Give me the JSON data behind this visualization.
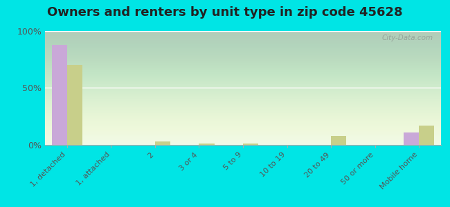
{
  "title": "Owners and renters by unit type in zip code 45628",
  "categories": [
    "1, detached",
    "1, attached",
    "2",
    "3 or 4",
    "5 to 9",
    "10 to 19",
    "20 to 49",
    "50 or more",
    "Mobile home"
  ],
  "owner_values": [
    88,
    0,
    0,
    0,
    0,
    0,
    0,
    0,
    11
  ],
  "renter_values": [
    70,
    0,
    3,
    1,
    1,
    0,
    8,
    0,
    17
  ],
  "owner_color": "#c9a8d8",
  "renter_color": "#c8cf8a",
  "background_color": "#00e5e5",
  "ylim": [
    0,
    100
  ],
  "yticks": [
    0,
    50,
    100
  ],
  "ytick_labels": [
    "0%",
    "50%",
    "100%"
  ],
  "watermark": "City-Data.com",
  "title_fontsize": 13,
  "tick_fontsize": 8,
  "ytick_fontsize": 9
}
